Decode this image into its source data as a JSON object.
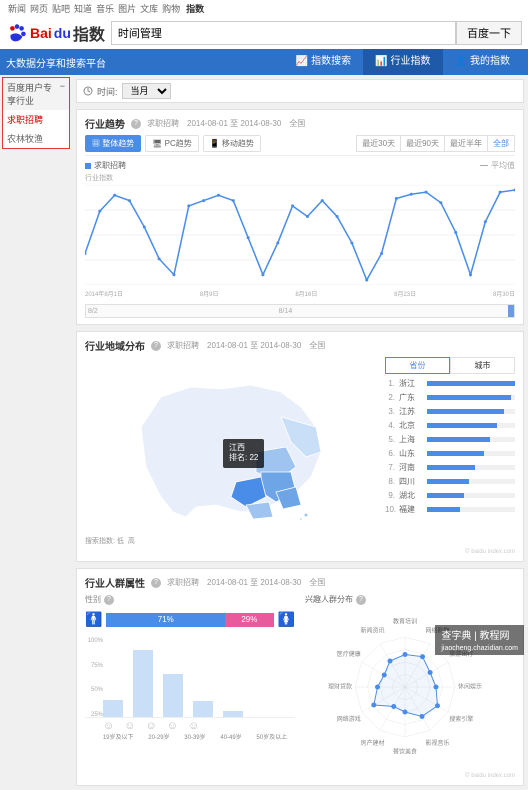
{
  "topNav": {
    "links": [
      "新闻",
      "网页",
      "贴吧",
      "知道",
      "音乐",
      "图片",
      "文库",
      "购物"
    ],
    "active": "指数"
  },
  "logo": {
    "text": "指数",
    "brand": "Bai",
    "brand2": "du"
  },
  "search": {
    "value": "时间管理",
    "button": "百度一下"
  },
  "mainNav": {
    "tagline": "大数据分享和搜索平台",
    "tabs": [
      "指数搜索",
      "行业指数",
      "我的指数"
    ],
    "activeIndex": 1
  },
  "sidebar": {
    "heading": "百度用户专享行业",
    "items": [
      "求职招聘",
      "农林牧渔"
    ],
    "selected": 0
  },
  "toolbar": {
    "timeLabel": "时间:",
    "option": "当月"
  },
  "trend": {
    "title": "行业趋势",
    "info": "求职招聘　2014-08-01 至 2014-08-30　全国",
    "subtabs": [
      "整体趋势",
      "PC趋势",
      "移动趋势"
    ],
    "ranges": [
      "最近30天",
      "最近90天",
      "最近半年",
      "全部"
    ],
    "rangeActive": 3,
    "legend": "求职招聘",
    "avgLabel": "平均值",
    "yAxisLabel": "行业指数",
    "xLabels": [
      "2014年8月1日",
      "8月9日",
      "8月16日",
      "8月23日",
      "8月30日"
    ],
    "values": [
      120,
      160,
      175,
      170,
      145,
      115,
      100,
      165,
      170,
      175,
      170,
      135,
      100,
      130,
      165,
      155,
      170,
      155,
      130,
      95,
      120,
      172,
      176,
      178,
      168,
      140,
      100,
      150,
      178,
      180
    ],
    "color": "#4a8de8",
    "bg": "#ffffff",
    "scrub": {
      "left": "8/2",
      "mid": "8/14"
    }
  },
  "region": {
    "title": "行业地域分布",
    "info": "求职招聘　2014-08-01 至 2014-08-30　全国",
    "tooltip": {
      "name": "江西",
      "rank": "排名: 22"
    },
    "rankTabs": [
      "省份",
      "城市"
    ],
    "scaleLabel": "搜索指数: 低",
    "scaleLabel2": "高",
    "scaleColors": [
      "#e8effa",
      "#c9dff8",
      "#9fc4f0",
      "#6ea5e6",
      "#4a8de8"
    ],
    "credit": "© baidu index.com",
    "ranks": [
      {
        "n": 1,
        "name": "浙江",
        "v": 100
      },
      {
        "n": 2,
        "name": "广东",
        "v": 95
      },
      {
        "n": 3,
        "name": "江苏",
        "v": 88
      },
      {
        "n": 4,
        "name": "北京",
        "v": 80
      },
      {
        "n": 5,
        "name": "上海",
        "v": 72
      },
      {
        "n": 6,
        "name": "山东",
        "v": 65
      },
      {
        "n": 7,
        "name": "河南",
        "v": 55
      },
      {
        "n": 8,
        "name": "四川",
        "v": 48
      },
      {
        "n": 9,
        "name": "湖北",
        "v": 42
      },
      {
        "n": 10,
        "name": "福建",
        "v": 38
      }
    ]
  },
  "demo": {
    "title": "行业人群属性",
    "info": "求职招聘　2014-08-01 至 2014-08-30　全国",
    "genderTitle": "性别",
    "male": 71,
    "female": 29,
    "malePct": "71%",
    "femalePct": "29%",
    "ageTitle": "",
    "ages": [
      {
        "label": "19岁及以下",
        "v": 22
      },
      {
        "label": "20-29岁",
        "v": 85
      },
      {
        "label": "30-39岁",
        "v": 55
      },
      {
        "label": "40-49岁",
        "v": 20
      },
      {
        "label": "50岁及以上",
        "v": 8
      }
    ],
    "ageYTicks": [
      "100%",
      "75%",
      "50%",
      "25%"
    ],
    "radarTitle": "兴趣人群分布",
    "radarLabels": [
      "教育培训",
      "网络购物",
      "旅游出行",
      "休闲娱乐",
      "搜索引擎",
      "影视音乐",
      "餐饮美食",
      "房产建材",
      "网络游戏",
      "理财贷款",
      "医疗健康",
      "新闻资讯"
    ],
    "radarValues": [
      65,
      70,
      58,
      62,
      75,
      68,
      50,
      45,
      72,
      55,
      48,
      60
    ],
    "radarColor": "#4a8de8",
    "credit": "© baidu index.com"
  },
  "watermark": "查字典 | 教程网",
  "watermark2": "jiaocheng.chazidian.com"
}
